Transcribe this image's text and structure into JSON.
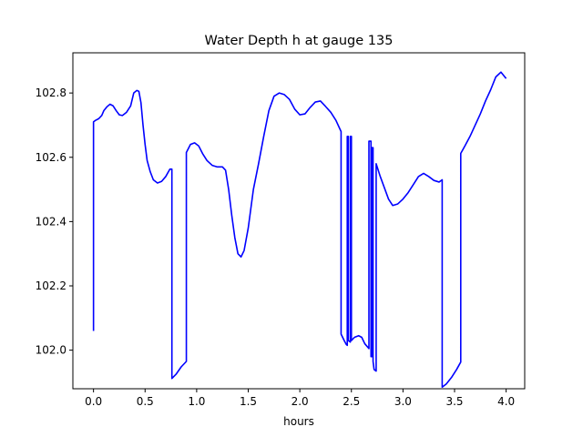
{
  "chart_data": {
    "type": "line",
    "title": "Water Depth h at gauge 135",
    "xlabel": "hours",
    "ylabel": "",
    "xlim": [
      -0.2,
      4.18
    ],
    "ylim": [
      101.88,
      102.925
    ],
    "xticks": [
      0.0,
      0.5,
      1.0,
      1.5,
      2.0,
      2.5,
      3.0,
      3.5,
      4.0
    ],
    "xtick_labels": [
      "0.0",
      "0.5",
      "1.0",
      "1.5",
      "2.0",
      "2.5",
      "3.0",
      "3.5",
      "4.0"
    ],
    "yticks": [
      102.0,
      102.2,
      102.4,
      102.6,
      102.8
    ],
    "ytick_labels": [
      "102.0",
      "102.2",
      "102.4",
      "102.6",
      "102.8"
    ],
    "grid": false,
    "color": "#0000ff",
    "series": [
      {
        "x": [
          0.0,
          0.0,
          0.02,
          0.05,
          0.08,
          0.1,
          0.13,
          0.16,
          0.19,
          0.22,
          0.25,
          0.28,
          0.32,
          0.36,
          0.39,
          0.42,
          0.44,
          0.46,
          0.48,
          0.5,
          0.52,
          0.55,
          0.58,
          0.62,
          0.66,
          0.7,
          0.74,
          0.76,
          0.76,
          0.8,
          0.85,
          0.9,
          0.9,
          0.94,
          0.98,
          1.02,
          1.06,
          1.1,
          1.15,
          1.2,
          1.25,
          1.28,
          1.31,
          1.34,
          1.37,
          1.4,
          1.43,
          1.46,
          1.5,
          1.55,
          1.6,
          1.65,
          1.7,
          1.75,
          1.8,
          1.85,
          1.9,
          1.95,
          2.0,
          2.05,
          2.1,
          2.15,
          2.2,
          2.25,
          2.3,
          2.35,
          2.4,
          2.4,
          2.43,
          2.45,
          2.46,
          2.46,
          2.47,
          2.47,
          2.49,
          2.49,
          2.5,
          2.5,
          2.53,
          2.57,
          2.6,
          2.63,
          2.67,
          2.67,
          2.69,
          2.69,
          2.7,
          2.7,
          2.71,
          2.71,
          2.72,
          2.74,
          2.74,
          2.78,
          2.82,
          2.86,
          2.9,
          2.95,
          3.0,
          3.05,
          3.1,
          3.15,
          3.2,
          3.25,
          3.3,
          3.35,
          3.38,
          3.38,
          3.42,
          3.47,
          3.52,
          3.56,
          3.56,
          3.6,
          3.65,
          3.7,
          3.75,
          3.8,
          3.85,
          3.9,
          3.95,
          4.0
        ],
        "y": [
          102.06,
          102.71,
          102.715,
          102.72,
          102.73,
          102.745,
          102.757,
          102.765,
          102.76,
          102.745,
          102.732,
          102.73,
          102.74,
          102.76,
          102.8,
          102.808,
          102.805,
          102.77,
          102.7,
          102.64,
          102.59,
          102.555,
          102.53,
          102.52,
          102.525,
          102.54,
          102.563,
          102.563,
          101.912,
          101.925,
          101.948,
          101.965,
          102.615,
          102.64,
          102.645,
          102.635,
          102.61,
          102.59,
          102.575,
          102.57,
          102.57,
          102.56,
          102.5,
          102.42,
          102.35,
          102.3,
          102.29,
          102.31,
          102.38,
          102.5,
          102.58,
          102.665,
          102.745,
          102.79,
          102.8,
          102.795,
          102.78,
          102.75,
          102.732,
          102.735,
          102.755,
          102.772,
          102.775,
          102.758,
          102.74,
          102.715,
          102.68,
          102.05,
          102.03,
          102.018,
          102.015,
          102.665,
          102.665,
          102.03,
          102.025,
          102.665,
          102.665,
          102.03,
          102.04,
          102.045,
          102.04,
          102.02,
          102.005,
          102.65,
          102.65,
          101.98,
          101.98,
          102.63,
          102.63,
          101.965,
          101.94,
          101.935,
          102.58,
          102.54,
          102.505,
          102.47,
          102.45,
          102.455,
          102.47,
          102.49,
          102.515,
          102.54,
          102.55,
          102.54,
          102.528,
          102.523,
          102.53,
          101.885,
          101.895,
          101.915,
          101.94,
          101.963,
          102.612,
          102.635,
          102.665,
          102.7,
          102.735,
          102.775,
          102.81,
          102.85,
          102.865,
          102.845
        ]
      }
    ]
  }
}
